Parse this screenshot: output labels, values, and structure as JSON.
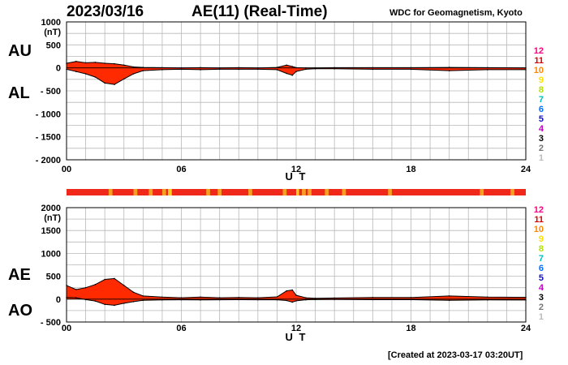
{
  "header": {
    "date": "2023/03/16",
    "title": "AE(11) (Real-Time)",
    "org": "WDC for Geomagnetism, Kyoto"
  },
  "footer": {
    "created": "[Created at 2023-03-17 03:20UT]"
  },
  "colors": {
    "fill": "#ff2a00",
    "band_base": "#f0281a",
    "band_light": "#f4a020",
    "band_yellow": "#f8d020"
  },
  "level_colors": {
    "12": "#ff0080",
    "11": "#e00000",
    "10": "#ff8800",
    "9": "#ffe000",
    "8": "#b0e000",
    "7": "#00c0c0",
    "6": "#0070ff",
    "5": "#1010c0",
    "4": "#c000c0",
    "3": "#000000",
    "2": "#777777",
    "1": "#bbbbbb"
  },
  "chart_data": [
    {
      "type": "area",
      "name": "AU/AL",
      "series_labels": {
        "upper": "AU",
        "lower": "AL"
      },
      "y_unit": "(nT)",
      "xlabel": "U T",
      "ylim": [
        -2000,
        1000
      ],
      "xlim": [
        0,
        24
      ],
      "y_tick_labels": [
        "1000",
        "500",
        "0",
        "- 500",
        "- 1000",
        "- 1500",
        "- 2000"
      ],
      "y_ticks": [
        1000,
        500,
        0,
        -500,
        -1000,
        -1500,
        -2000
      ],
      "x_tick_labels": [
        "00",
        "06",
        "12",
        "18",
        "24"
      ],
      "legend_levels": [
        "12",
        "11",
        "10",
        "9",
        "8",
        "7",
        "6",
        "5",
        "4",
        "3",
        "2",
        "1"
      ],
      "series": [
        {
          "name": "AU",
          "x": [
            0,
            0.5,
            1,
            1.5,
            2,
            2.5,
            3,
            3.5,
            4,
            5,
            6,
            7,
            8,
            9,
            10,
            11,
            11.5,
            11.8,
            12,
            12.5,
            13,
            14,
            16,
            18,
            20,
            22,
            24
          ],
          "values": [
            100,
            140,
            110,
            120,
            100,
            90,
            60,
            20,
            10,
            5,
            0,
            5,
            0,
            5,
            0,
            10,
            60,
            30,
            5,
            0,
            0,
            5,
            5,
            5,
            10,
            5,
            0
          ]
        },
        {
          "name": "AL",
          "x": [
            0,
            0.5,
            1,
            1.5,
            2,
            2.5,
            3,
            3.5,
            4,
            5,
            6,
            7,
            8,
            9,
            10,
            11,
            11.5,
            11.8,
            12,
            12.5,
            13,
            14,
            16,
            18,
            20,
            22,
            24
          ],
          "values": [
            -30,
            -80,
            -130,
            -200,
            -330,
            -360,
            -240,
            -130,
            -60,
            -40,
            -30,
            -40,
            -30,
            -30,
            -30,
            -40,
            -120,
            -160,
            -80,
            -30,
            -20,
            -20,
            -30,
            -30,
            -60,
            -40,
            -40
          ]
        }
      ]
    },
    {
      "type": "area",
      "name": "AE/AO",
      "series_labels": {
        "upper": "AE",
        "lower": "AO"
      },
      "y_unit": "(nT)",
      "xlabel": "U T",
      "ylim": [
        -500,
        2000
      ],
      "xlim": [
        0,
        24
      ],
      "y_tick_labels": [
        "2000",
        "1500",
        "1000",
        "500",
        "0",
        "- 500"
      ],
      "y_ticks": [
        2000,
        1500,
        1000,
        500,
        0,
        -500
      ],
      "x_tick_labels": [
        "00",
        "06",
        "12",
        "18",
        "24"
      ],
      "legend_levels": [
        "12",
        "11",
        "10",
        "9",
        "8",
        "7",
        "6",
        "5",
        "4",
        "3",
        "2",
        "1"
      ],
      "series": [
        {
          "name": "AE",
          "x": [
            0,
            0.5,
            1,
            1.5,
            2,
            2.5,
            3,
            3.5,
            4,
            5,
            6,
            7,
            8,
            9,
            10,
            11,
            11.5,
            11.8,
            12,
            12.5,
            13,
            14,
            16,
            18,
            20,
            22,
            24
          ],
          "values": [
            300,
            210,
            250,
            320,
            430,
            450,
            300,
            150,
            70,
            45,
            30,
            45,
            30,
            35,
            30,
            50,
            180,
            200,
            85,
            30,
            20,
            25,
            35,
            35,
            70,
            45,
            40
          ]
        },
        {
          "name": "AO",
          "x": [
            0,
            0.5,
            1,
            1.5,
            2,
            2.5,
            3,
            3.5,
            4,
            5,
            6,
            7,
            8,
            9,
            10,
            11,
            11.5,
            11.8,
            12,
            12.5,
            13,
            14,
            16,
            18,
            20,
            22,
            24
          ],
          "values": [
            35,
            30,
            -10,
            -40,
            -115,
            -135,
            -90,
            -55,
            -25,
            -18,
            -15,
            -18,
            -15,
            -13,
            -15,
            -15,
            -30,
            -65,
            -38,
            -15,
            -10,
            -8,
            -13,
            -13,
            -25,
            -18,
            -20
          ]
        }
      ]
    }
  ],
  "activity_band": {
    "light_segments": [
      [
        2.2,
        2.4
      ],
      [
        3.5,
        3.7
      ],
      [
        4.3,
        4.5
      ],
      [
        5.0,
        5.2
      ],
      [
        7.3,
        7.5
      ],
      [
        7.9,
        8.1
      ],
      [
        9.5,
        9.7
      ],
      [
        11.3,
        11.5
      ],
      [
        12.3,
        12.5
      ],
      [
        12.6,
        12.8
      ],
      [
        13.5,
        13.7
      ],
      [
        14.4,
        14.6
      ],
      [
        16.8,
        17.0
      ],
      [
        21.6,
        21.8
      ],
      [
        23.2,
        23.4
      ]
    ],
    "yellow_segments": [
      [
        5.3,
        5.5
      ],
      [
        12.0,
        12.15
      ]
    ]
  }
}
